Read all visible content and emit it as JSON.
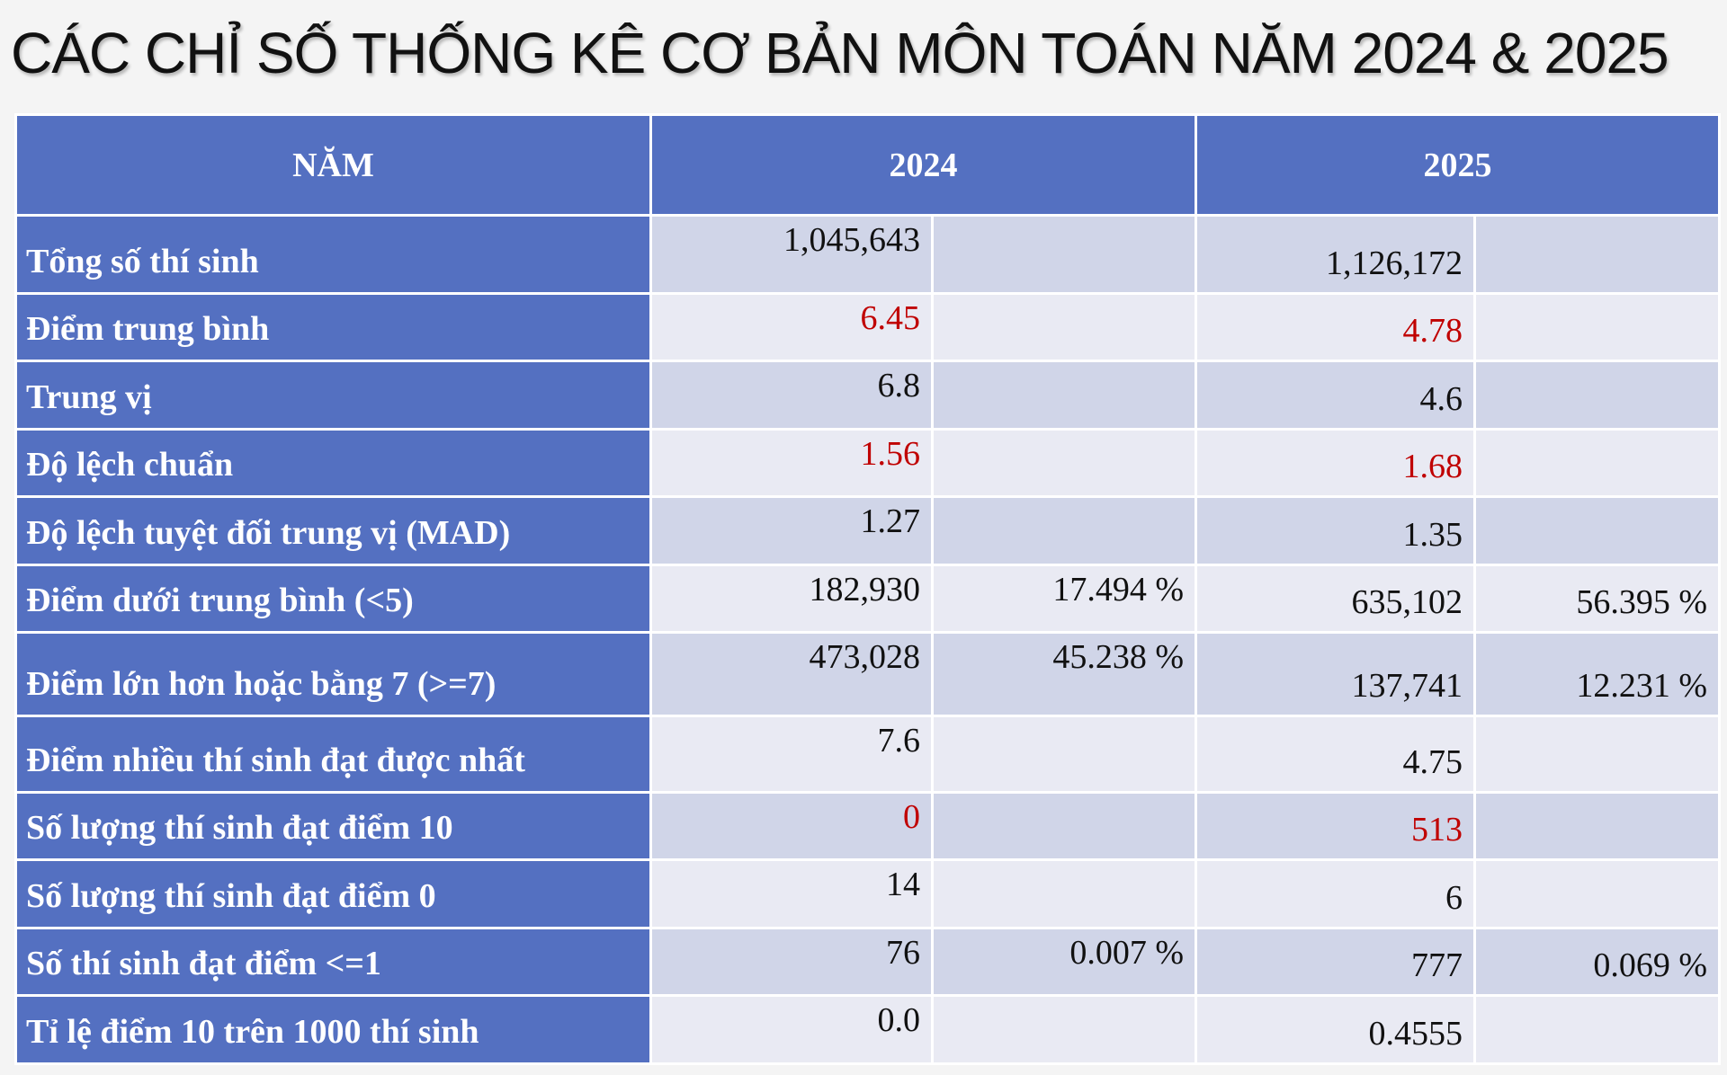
{
  "title": "CÁC CHỈ SỐ THỐNG KÊ CƠ BẢN MÔN TOÁN NĂM 2024 & 2025",
  "header": {
    "label": "NĂM",
    "y2024": "2024",
    "y2025": "2025"
  },
  "rows": [
    {
      "label": "Tổng số thí sinh",
      "v2024": "1,045,643",
      "p2024": "",
      "v2025": "1,126,172",
      "p2025": ""
    },
    {
      "label": "Điểm trung bình",
      "v2024": "6.45",
      "p2024": "",
      "v2025": "4.78",
      "p2025": ""
    },
    {
      "label": "Trung vị",
      "v2024": "6.8",
      "p2024": "",
      "v2025": "4.6",
      "p2025": ""
    },
    {
      "label": "Độ lệch chuẩn",
      "v2024": "1.56",
      "p2024": "",
      "v2025": "1.68",
      "p2025": ""
    },
    {
      "label": "Độ lệch tuyệt đối trung vị (MAD)",
      "v2024": "1.27",
      "p2024": "",
      "v2025": "1.35",
      "p2025": ""
    },
    {
      "label": "Điểm dưới trung bình (<5)",
      "v2024": "182,930",
      "p2024": "17.494 %",
      "v2025": "635,102",
      "p2025": "56.395 %"
    },
    {
      "label": "Điểm lớn hơn hoặc bằng 7 (>=7)",
      "v2024": "473,028",
      "p2024": "45.238 %",
      "v2025": "137,741",
      "p2025": "12.231 %"
    },
    {
      "label": "Điểm nhiều thí sinh đạt được nhất",
      "v2024": "7.6",
      "p2024": "",
      "v2025": "4.75",
      "p2025": ""
    },
    {
      "label": "Số lượng thí sinh đạt điểm 10",
      "v2024": "0",
      "p2024": "",
      "v2025": "513",
      "p2025": ""
    },
    {
      "label": "Số lượng thí sinh đạt điểm 0",
      "v2024": "14",
      "p2024": "",
      "v2025": "6",
      "p2025": ""
    },
    {
      "label": "Số thí sinh đạt điểm <=1",
      "v2024": "76",
      "p2024": "0.007 %",
      "v2025": "777",
      "p2025": "0.069 %"
    },
    {
      "label": "Tỉ lệ điểm 10 trên 1000 thí sinh",
      "v2024": "0.0",
      "p2024": "",
      "v2025": "0.4555",
      "p2025": ""
    }
  ],
  "colors": {
    "header_bg": "#5470c1",
    "cell_dark": "#d0d5e8",
    "cell_light": "#e9eaf3",
    "highlight": "#c00000"
  }
}
